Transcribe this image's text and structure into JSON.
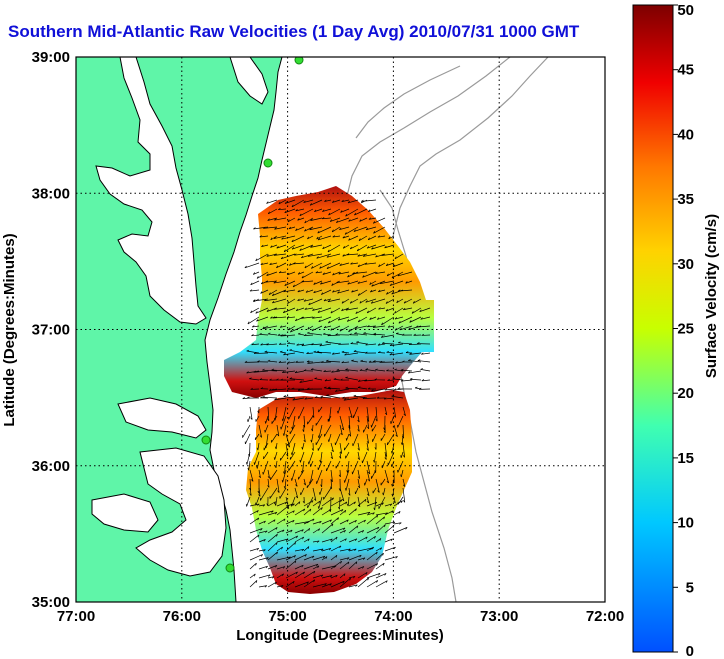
{
  "chart_data": {
    "type": "heatmap",
    "title": "Southern Mid-Atlantic Raw Velocities (1 Day Avg) 2010/07/31 1000 GMT",
    "xlabel": "Longitude (Degrees:Minutes)",
    "ylabel": "Latitude (Degrees:Minutes)",
    "xlim": [
      -77,
      -72
    ],
    "ylim": [
      35,
      39
    ],
    "x_ticks": [
      {
        "value": -77,
        "label": "77:00"
      },
      {
        "value": -76,
        "label": "76:00"
      },
      {
        "value": -75,
        "label": "75:00"
      },
      {
        "value": -74,
        "label": "74:00"
      },
      {
        "value": -73,
        "label": "73:00"
      },
      {
        "value": -72,
        "label": "72:00"
      }
    ],
    "y_ticks": [
      {
        "value": 39,
        "label": "39:00"
      },
      {
        "value": 38,
        "label": "38:00"
      },
      {
        "value": 37,
        "label": "37:00"
      },
      {
        "value": 36,
        "label": "36:00"
      },
      {
        "value": 35,
        "label": "35:00"
      }
    ],
    "grid": true,
    "colorbar": {
      "label": "Surface Velocity (cm/s)",
      "range": [
        0,
        50
      ],
      "ticks": [
        "50",
        "45",
        "40",
        "35",
        "30",
        "25",
        "20",
        "15",
        "10",
        "5",
        "0"
      ],
      "colormap": "jet",
      "placement": "right"
    },
    "colors": {
      "land": "#5ff5a8",
      "coast_outline": "#000000",
      "bathymetry": "#9a9a9a",
      "station": "#33dd33",
      "title": "#1010d8"
    }
  }
}
